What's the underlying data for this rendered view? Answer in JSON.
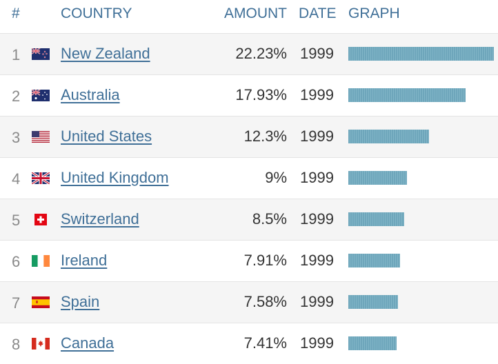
{
  "header": {
    "num": "#",
    "country": "COUNTRY",
    "amount": "AMOUNT",
    "date": "DATE",
    "graph": "GRAPH"
  },
  "rows": [
    {
      "rank": "1",
      "country": "New Zealand",
      "amount": "22.23%",
      "date": "1999",
      "value": 22.23,
      "flag": "nz"
    },
    {
      "rank": "2",
      "country": "Australia",
      "amount": "17.93%",
      "date": "1999",
      "value": 17.93,
      "flag": "au"
    },
    {
      "rank": "3",
      "country": "United States",
      "amount": "12.3%",
      "date": "1999",
      "value": 12.3,
      "flag": "us"
    },
    {
      "rank": "4",
      "country": "United Kingdom",
      "amount": "9%",
      "date": "1999",
      "value": 9,
      "flag": "gb"
    },
    {
      "rank": "5",
      "country": "Switzerland",
      "amount": "8.5%",
      "date": "1999",
      "value": 8.5,
      "flag": "ch"
    },
    {
      "rank": "6",
      "country": "Ireland",
      "amount": "7.91%",
      "date": "1999",
      "value": 7.91,
      "flag": "ie"
    },
    {
      "rank": "7",
      "country": "Spain",
      "amount": "7.58%",
      "date": "1999",
      "value": 7.58,
      "flag": "es"
    },
    {
      "rank": "8",
      "country": "Canada",
      "amount": "7.41%",
      "date": "1999",
      "value": 7.41,
      "flag": "ca"
    }
  ],
  "colors": {
    "header_text": "#3f6f97",
    "link": "#3f6f97",
    "bar": "#6ea6bb"
  }
}
